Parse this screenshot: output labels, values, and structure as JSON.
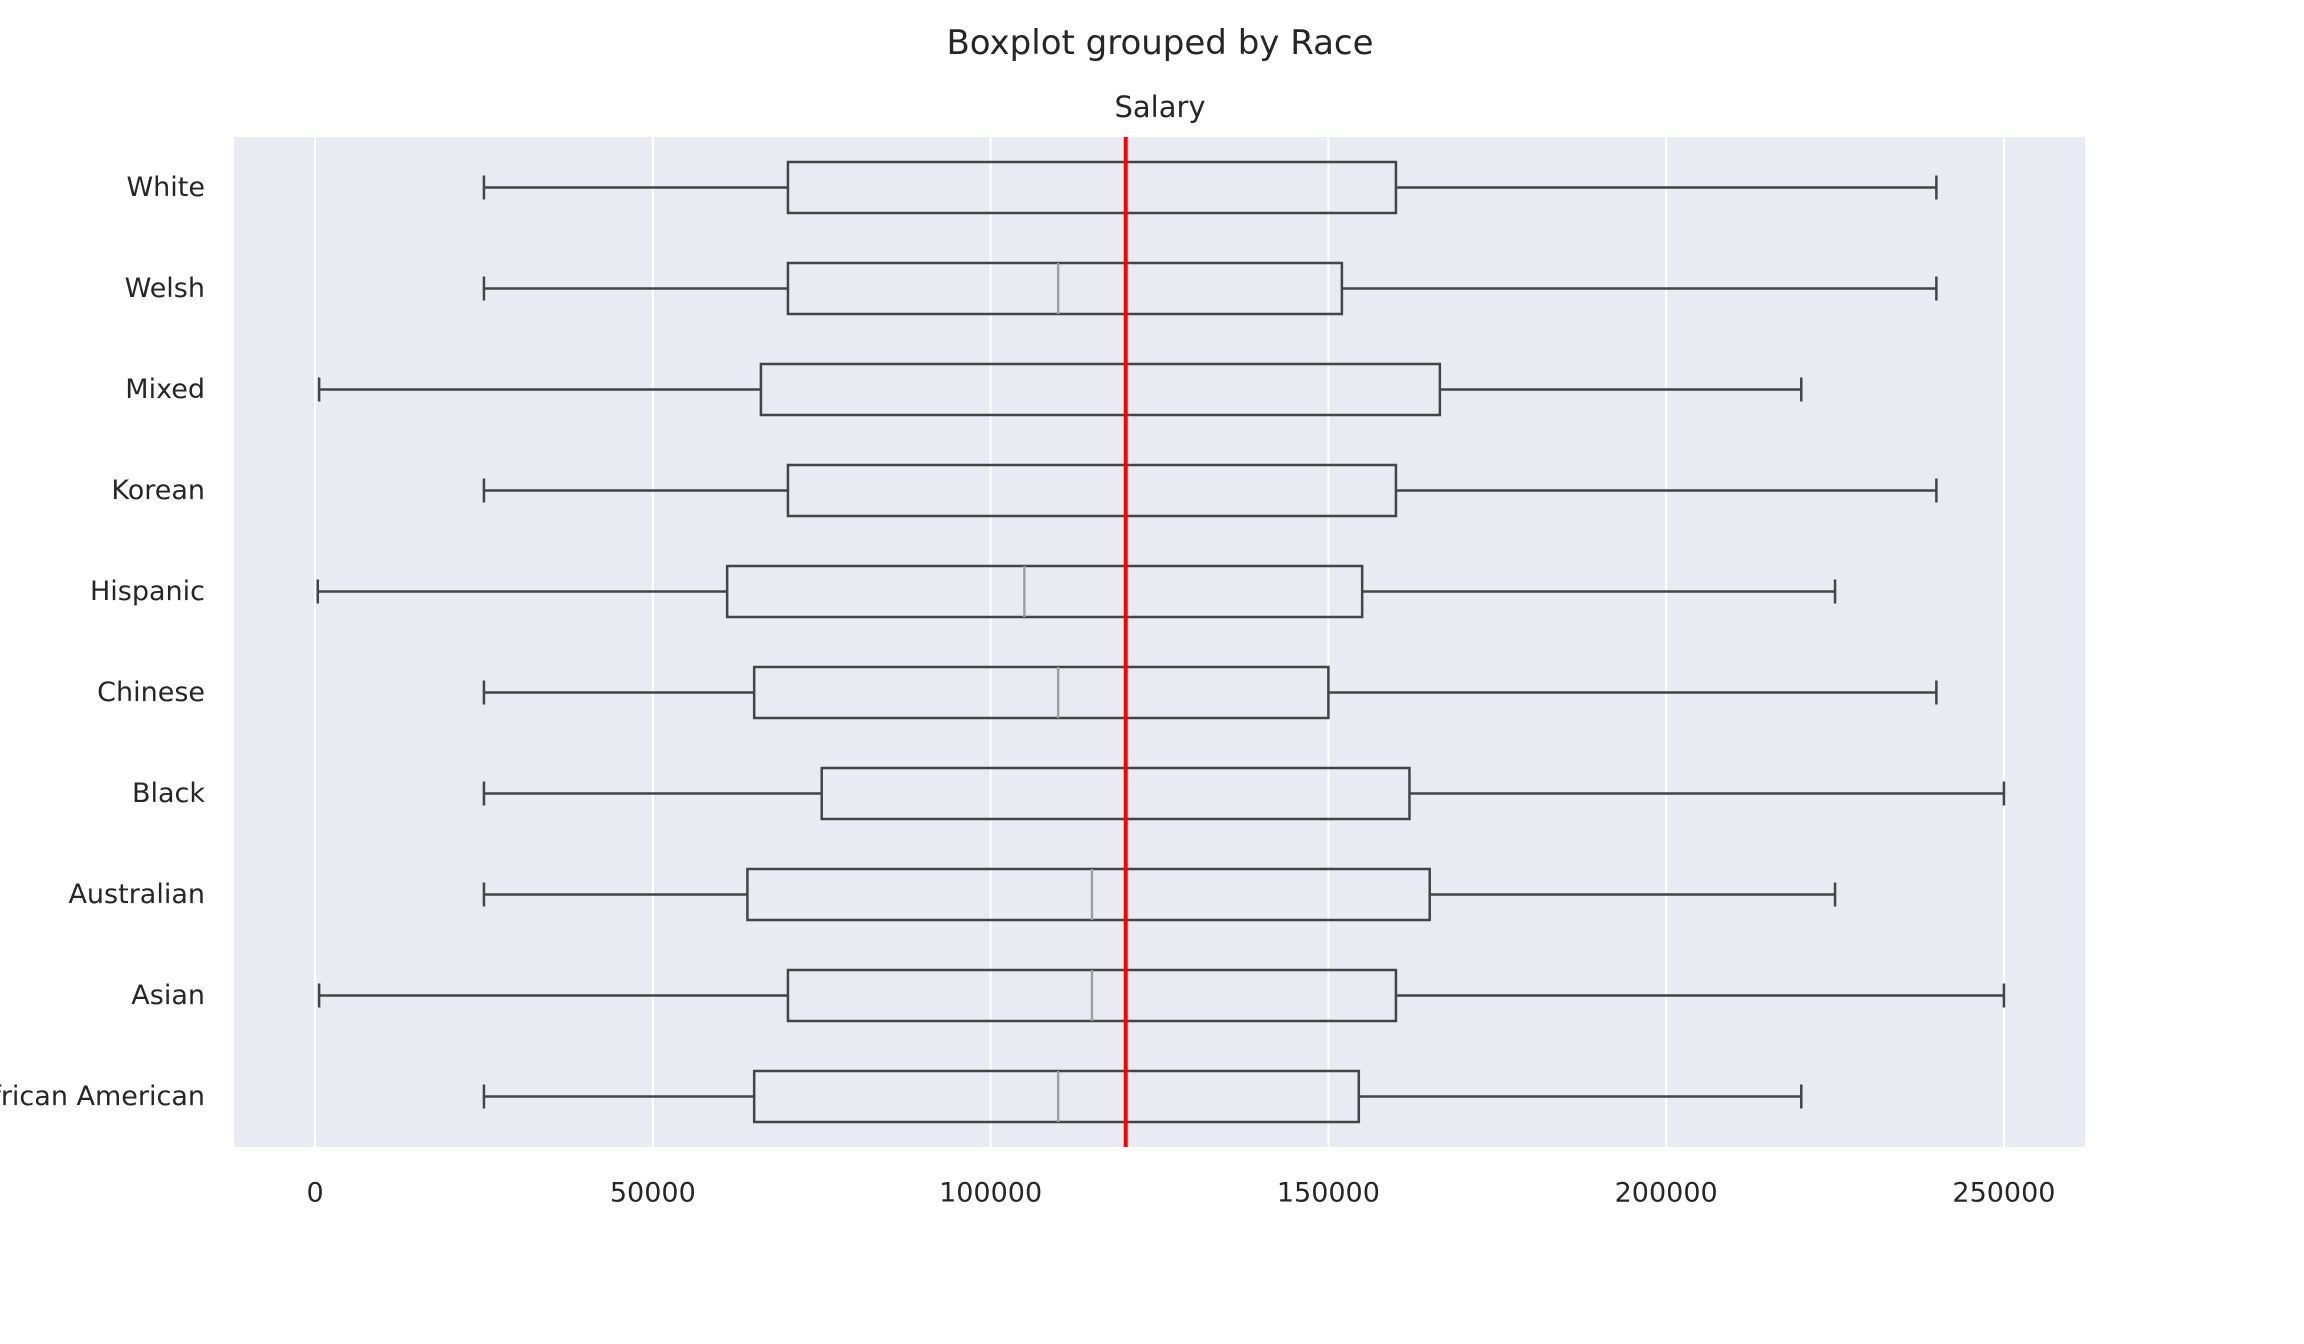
{
  "chart_data": {
    "type": "boxplot",
    "orientation": "horizontal",
    "title": "Boxplot grouped by Race",
    "subtitle": "Salary",
    "xlim": [
      -12000,
      262000
    ],
    "xticks": [
      0,
      50000,
      100000,
      150000,
      200000,
      250000
    ],
    "xtick_labels": [
      "0",
      "50000",
      "100000",
      "150000",
      "200000",
      "250000"
    ],
    "grid": true,
    "reference_line": {
      "value": 120000,
      "color": "#ff0000"
    },
    "colors": {
      "plot_background": "#eaeaf2",
      "grid": "#ffffff",
      "box": "#444444",
      "median": "#a0a0a0",
      "reference": "#ff0000",
      "text": "#262626"
    },
    "categories": [
      "White",
      "Welsh",
      "Mixed",
      "Korean",
      "Hispanic",
      "Chinese",
      "Black",
      "Australian",
      "Asian",
      "African American"
    ],
    "boxes": [
      {
        "label": "White",
        "whisker_low": 25000,
        "q1": 70000,
        "median": 120000,
        "q3": 160000,
        "whisker_high": 240000
      },
      {
        "label": "Welsh",
        "whisker_low": 25000,
        "q1": 70000,
        "median": 110000,
        "q3": 152000,
        "whisker_high": 240000
      },
      {
        "label": "Mixed",
        "whisker_low": 600,
        "q1": 66000,
        "median": 120000,
        "q3": 166500,
        "whisker_high": 220000
      },
      {
        "label": "Korean",
        "whisker_low": 25000,
        "q1": 70000,
        "median": 120000,
        "q3": 160000,
        "whisker_high": 240000
      },
      {
        "label": "Hispanic",
        "whisker_low": 400,
        "q1": 61000,
        "median": 105000,
        "q3": 155000,
        "whisker_high": 225000
      },
      {
        "label": "Chinese",
        "whisker_low": 25000,
        "q1": 65000,
        "median": 110000,
        "q3": 150000,
        "whisker_high": 240000
      },
      {
        "label": "Black",
        "whisker_low": 25000,
        "q1": 75000,
        "median": 120000,
        "q3": 162000,
        "whisker_high": 250000
      },
      {
        "label": "Australian",
        "whisker_low": 25000,
        "q1": 64000,
        "median": 115000,
        "q3": 165000,
        "whisker_high": 225000
      },
      {
        "label": "Asian",
        "whisker_low": 600,
        "q1": 70000,
        "median": 115000,
        "q3": 160000,
        "whisker_high": 250000
      },
      {
        "label": "African American",
        "whisker_low": 25000,
        "q1": 65000,
        "median": 110000,
        "q3": 154500,
        "whisker_high": 220000
      }
    ]
  }
}
